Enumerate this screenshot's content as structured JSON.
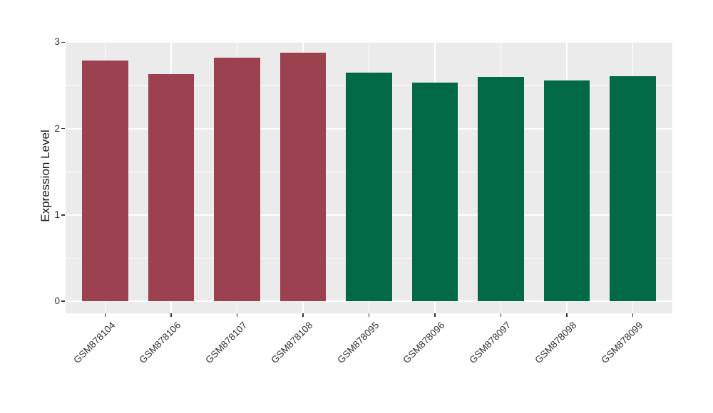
{
  "chart_data": {
    "type": "bar",
    "title": "",
    "xlabel": "",
    "ylabel": "Expression Level",
    "categories": [
      "GSM878104",
      "GSM878106",
      "GSM878107",
      "GSM878108",
      "GSM878095",
      "GSM878096",
      "GSM878097",
      "GSM878098",
      "GSM878099"
    ],
    "values": [
      2.79,
      2.63,
      2.82,
      2.88,
      2.65,
      2.53,
      2.6,
      2.56,
      2.61
    ],
    "bar_colors": [
      "#9C4150",
      "#9C4150",
      "#9C4150",
      "#9C4150",
      "#016946",
      "#016946",
      "#016946",
      "#016946",
      "#016946"
    ],
    "group_colors": {
      "GSM8781xx": "#9C4150",
      "GSM8780xx": "#016946"
    },
    "ylim": [
      0,
      3.01
    ],
    "yticks": [
      0,
      1,
      2,
      3
    ],
    "yticks_minor": [
      0.5,
      1.5,
      2.5
    ],
    "grid": "on",
    "legend": "none",
    "panel_background": "#EBEBEB",
    "grid_color": "#FFFFFF"
  }
}
